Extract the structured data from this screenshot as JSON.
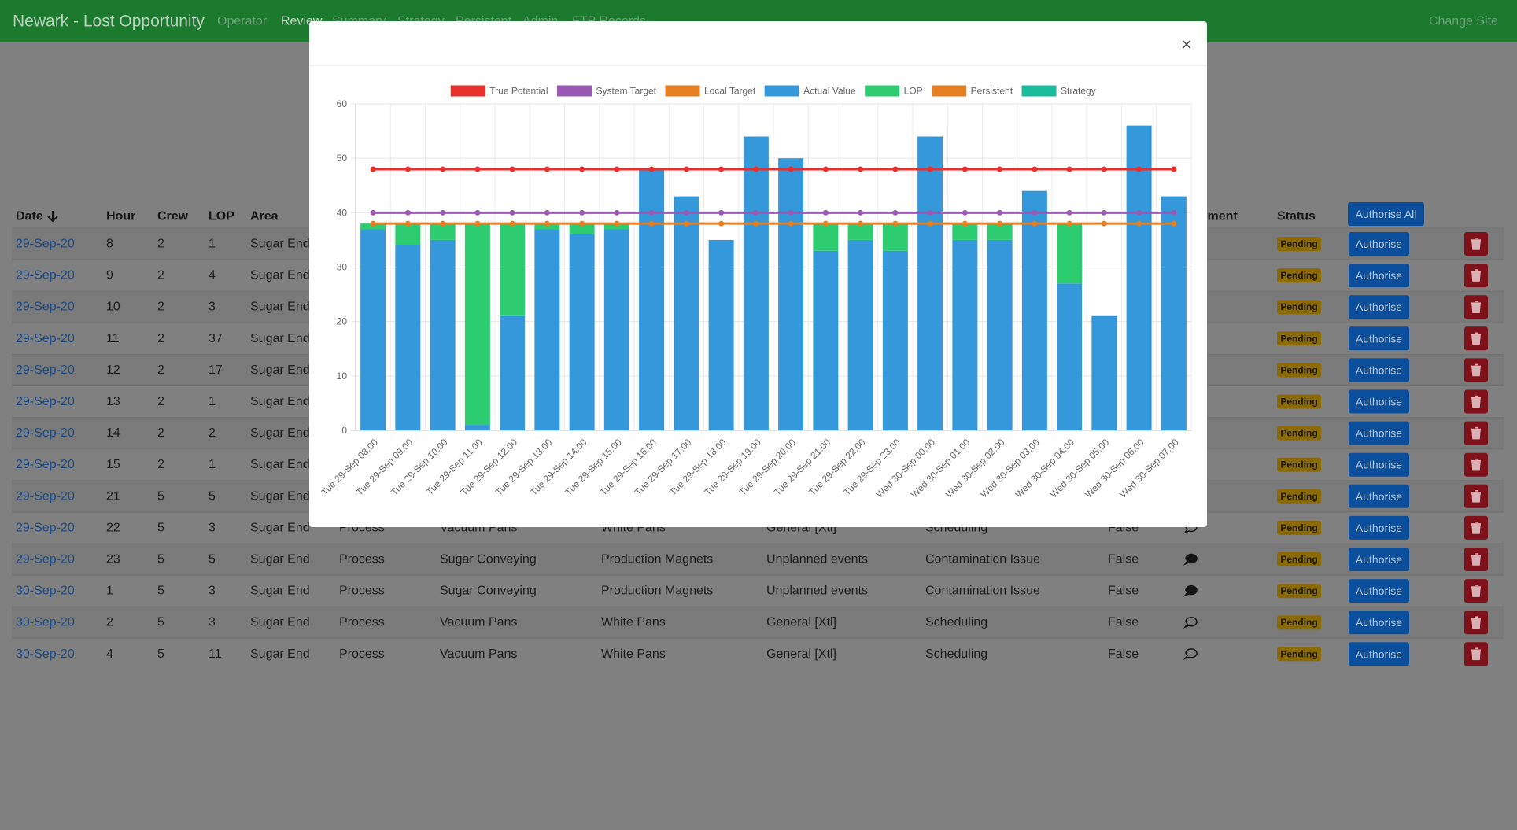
{
  "navbar": {
    "brand": "Newark - Lost Opportunity",
    "links": [
      "Operator",
      "Review",
      "Summary",
      "Strategy",
      "Persistent",
      "Admin",
      "FTP Records"
    ],
    "active": 1,
    "change_site": "Change Site"
  },
  "table": {
    "headers": [
      "Date",
      "Hour",
      "Crew",
      "LOP",
      "Area",
      "Comment",
      "Status"
    ],
    "authorise_all": "Authorise All",
    "status_label": "Pending",
    "authorise_label": "Authorise",
    "rows": [
      {
        "cells": [
          "29-Sep-20",
          "8",
          "2",
          "1",
          "Sugar End"
        ]
      },
      {
        "cells": [
          "29-Sep-20",
          "9",
          "2",
          "4",
          "Sugar End"
        ]
      },
      {
        "cells": [
          "29-Sep-20",
          "10",
          "2",
          "3",
          "Sugar End"
        ]
      },
      {
        "cells": [
          "29-Sep-20",
          "11",
          "2",
          "37",
          "Sugar End"
        ]
      },
      {
        "cells": [
          "29-Sep-20",
          "12",
          "2",
          "17",
          "Sugar End"
        ]
      },
      {
        "cells": [
          "29-Sep-20",
          "13",
          "2",
          "1",
          "Sugar End"
        ]
      },
      {
        "cells": [
          "29-Sep-20",
          "14",
          "2",
          "2",
          "Sugar End"
        ]
      },
      {
        "cells": [
          "29-Sep-20",
          "15",
          "2",
          "1",
          "Sugar End"
        ]
      },
      {
        "cells": [
          "29-Sep-20",
          "21",
          "5",
          "5",
          "Sugar End"
        ]
      },
      {
        "cells": [
          "29-Sep-20",
          "22",
          "5",
          "3",
          "Sugar End",
          "Process",
          "Vacuum Pans",
          "White Pans",
          "General [Xtl]",
          "Scheduling",
          "False"
        ],
        "comment": "outline"
      },
      {
        "cells": [
          "29-Sep-20",
          "23",
          "5",
          "5",
          "Sugar End",
          "Process",
          "Sugar Conveying",
          "Production Magnets",
          "Unplanned events",
          "Contamination Issue",
          "False"
        ],
        "comment": "filled"
      },
      {
        "cells": [
          "30-Sep-20",
          "1",
          "5",
          "3",
          "Sugar End",
          "Process",
          "Sugar Conveying",
          "Production Magnets",
          "Unplanned events",
          "Contamination Issue",
          "False"
        ],
        "comment": "filled"
      },
      {
        "cells": [
          "30-Sep-20",
          "2",
          "5",
          "3",
          "Sugar End",
          "Process",
          "Vacuum Pans",
          "White Pans",
          "General [Xtl]",
          "Scheduling",
          "False"
        ],
        "comment": "outline"
      },
      {
        "cells": [
          "30-Sep-20",
          "4",
          "5",
          "11",
          "Sugar End",
          "Process",
          "Vacuum Pans",
          "White Pans",
          "General [Xtl]",
          "Scheduling",
          "False"
        ],
        "comment": "outline"
      }
    ]
  },
  "modal": {
    "close": "×"
  },
  "chart_data": {
    "type": "bar",
    "stacked": true,
    "categories": [
      "Tue 29-Sep 08:00",
      "Tue 29-Sep 09:00",
      "Tue 29-Sep 10:00",
      "Tue 29-Sep 11:00",
      "Tue 29-Sep 12:00",
      "Tue 29-Sep 13:00",
      "Tue 29-Sep 14:00",
      "Tue 29-Sep 15:00",
      "Tue 29-Sep 16:00",
      "Tue 29-Sep 17:00",
      "Tue 29-Sep 18:00",
      "Tue 29-Sep 19:00",
      "Tue 29-Sep 20:00",
      "Tue 29-Sep 21:00",
      "Tue 29-Sep 22:00",
      "Tue 29-Sep 23:00",
      "Wed 30-Sep 00:00",
      "Wed 30-Sep 01:00",
      "Wed 30-Sep 02:00",
      "Wed 30-Sep 03:00",
      "Wed 30-Sep 04:00",
      "Wed 30-Sep 05:00",
      "Wed 30-Sep 06:00",
      "Wed 30-Sep 07:00"
    ],
    "series": [
      {
        "name": "True Potential",
        "kind": "line",
        "color": "#e8302d",
        "values": [
          48,
          48,
          48,
          48,
          48,
          48,
          48,
          48,
          48,
          48,
          48,
          48,
          48,
          48,
          48,
          48,
          48,
          48,
          48,
          48,
          48,
          48,
          48,
          48
        ]
      },
      {
        "name": "System Target",
        "kind": "line",
        "color": "#9b59b6",
        "values": [
          40,
          40,
          40,
          40,
          40,
          40,
          40,
          40,
          40,
          40,
          40,
          40,
          40,
          40,
          40,
          40,
          40,
          40,
          40,
          40,
          40,
          40,
          40,
          40
        ]
      },
      {
        "name": "Local Target",
        "kind": "line",
        "color": "#e67e22",
        "values": [
          38,
          38,
          38,
          38,
          38,
          38,
          38,
          38,
          38,
          38,
          38,
          38,
          38,
          38,
          38,
          38,
          38,
          38,
          38,
          38,
          38,
          38,
          38,
          38
        ]
      },
      {
        "name": "Actual Value",
        "kind": "bar",
        "color": "#3498db",
        "values": [
          37,
          34,
          35,
          1,
          21,
          37,
          36,
          37,
          48,
          43,
          35,
          54,
          50,
          33,
          35,
          33,
          54,
          35,
          35,
          44,
          27,
          21,
          56,
          43
        ]
      },
      {
        "name": "LOP",
        "kind": "bar",
        "color": "#2ecc71",
        "values": [
          1,
          4,
          3,
          37,
          17,
          1,
          2,
          1,
          0,
          0,
          0,
          0,
          0,
          5,
          3,
          5,
          0,
          3,
          3,
          0,
          11,
          0,
          0,
          0
        ]
      },
      {
        "name": "Persistent",
        "kind": "bar",
        "color": "#e67e22",
        "values": [
          0,
          0,
          0,
          0,
          0,
          0,
          0,
          0,
          0,
          0,
          0,
          0,
          0,
          0,
          0,
          0,
          0,
          0,
          0,
          0,
          0,
          0,
          0,
          0
        ]
      },
      {
        "name": "Strategy",
        "kind": "bar",
        "color": "#1abc9c",
        "values": [
          0,
          0,
          0,
          0,
          0,
          0,
          0,
          0,
          0,
          0,
          0,
          0,
          0,
          0,
          0,
          0,
          0,
          0,
          0,
          0,
          0,
          0,
          0,
          0
        ]
      }
    ],
    "ylim": [
      0,
      60
    ],
    "yticks": [
      0,
      10,
      20,
      30,
      40,
      50,
      60
    ],
    "grid": true,
    "legend": "top"
  }
}
